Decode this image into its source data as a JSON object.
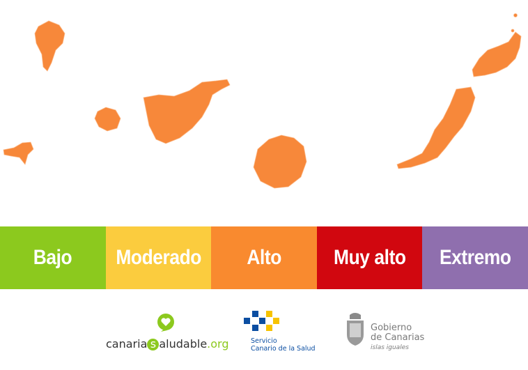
{
  "scale": [
    {
      "label": "Bajo",
      "color": "#8cc91e"
    },
    {
      "label": "Moderado",
      "color": "#fbcc3e"
    },
    {
      "label": "Alto",
      "color": "#f98a2f"
    },
    {
      "label": "Muy alto",
      "color": "#d1070f"
    },
    {
      "label": "Extremo",
      "color": "#8f6fae"
    }
  ],
  "map_color": "#f7883a",
  "logos": {
    "canarias_saludable": {
      "part1": "canaria",
      "badge": "s",
      "part2": "aludable",
      "suffix": ".org"
    },
    "scs": {
      "line1": "Servicio",
      "line2": "Canario de la Salud"
    },
    "gobierno": {
      "line1": "Gobierno",
      "line2": "de Canarias",
      "tagline": "islas iguales"
    }
  }
}
